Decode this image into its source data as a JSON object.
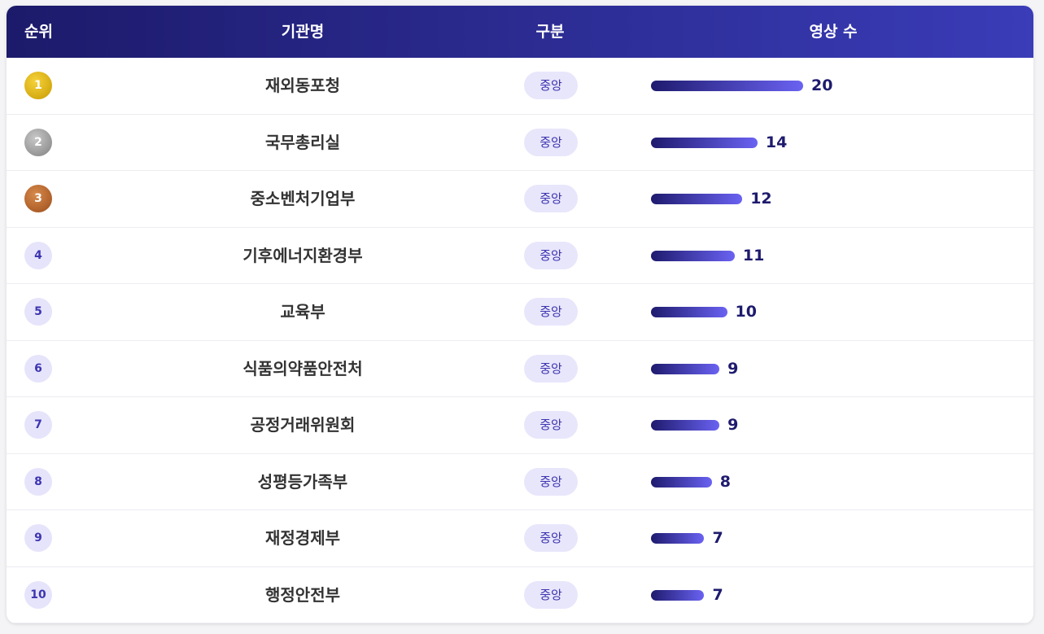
{
  "table": {
    "headers": [
      "순위",
      "기관명",
      "구분",
      "영상 수"
    ],
    "rows": [
      {
        "rank": 1,
        "name": "재외동포청",
        "type": "중앙",
        "count": 20
      },
      {
        "rank": 2,
        "name": "국무총리실",
        "type": "중앙",
        "count": 14
      },
      {
        "rank": 3,
        "name": "중소벤처기업부",
        "type": "중앙",
        "count": 12
      },
      {
        "rank": 4,
        "name": "기후에너지환경부",
        "type": "중앙",
        "count": 11
      },
      {
        "rank": 5,
        "name": "교육부",
        "type": "중앙",
        "count": 10
      },
      {
        "rank": 6,
        "name": "식품의약품안전처",
        "type": "중앙",
        "count": 9
      },
      {
        "rank": 7,
        "name": "공정거래위원회",
        "type": "중앙",
        "count": 9
      },
      {
        "rank": 8,
        "name": "성평등가족부",
        "type": "중앙",
        "count": 8
      },
      {
        "rank": 9,
        "name": "재정경제부",
        "type": "중앙",
        "count": 7
      },
      {
        "rank": 10,
        "name": "행정안전부",
        "type": "중앙",
        "count": 7
      }
    ]
  }
}
